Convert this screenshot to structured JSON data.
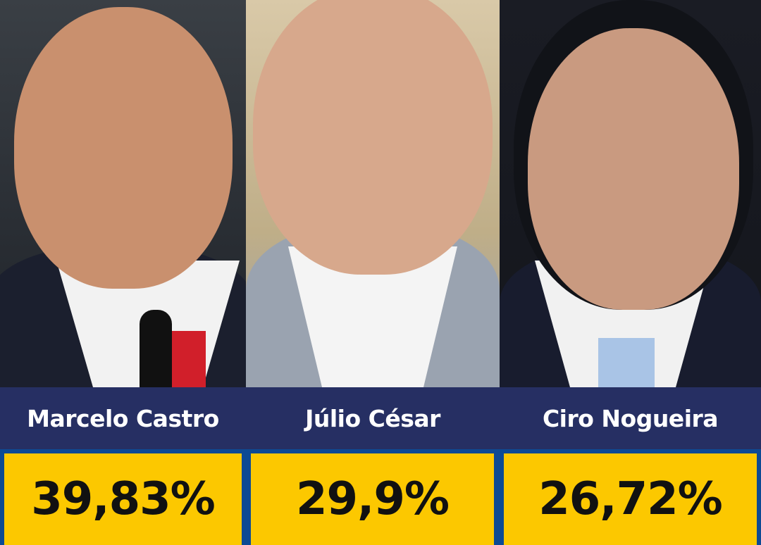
{
  "candidates": [
    {
      "name": "Marcelo Castro",
      "percent": "39,83%"
    },
    {
      "name": "Júlio César",
      "percent": "29,9%"
    },
    {
      "name": "Ciro Nogueira",
      "percent": "26,72%"
    }
  ],
  "colors": {
    "name_bar": "#262f63",
    "border": "#0d4a94",
    "value_box": "#fcc800"
  }
}
